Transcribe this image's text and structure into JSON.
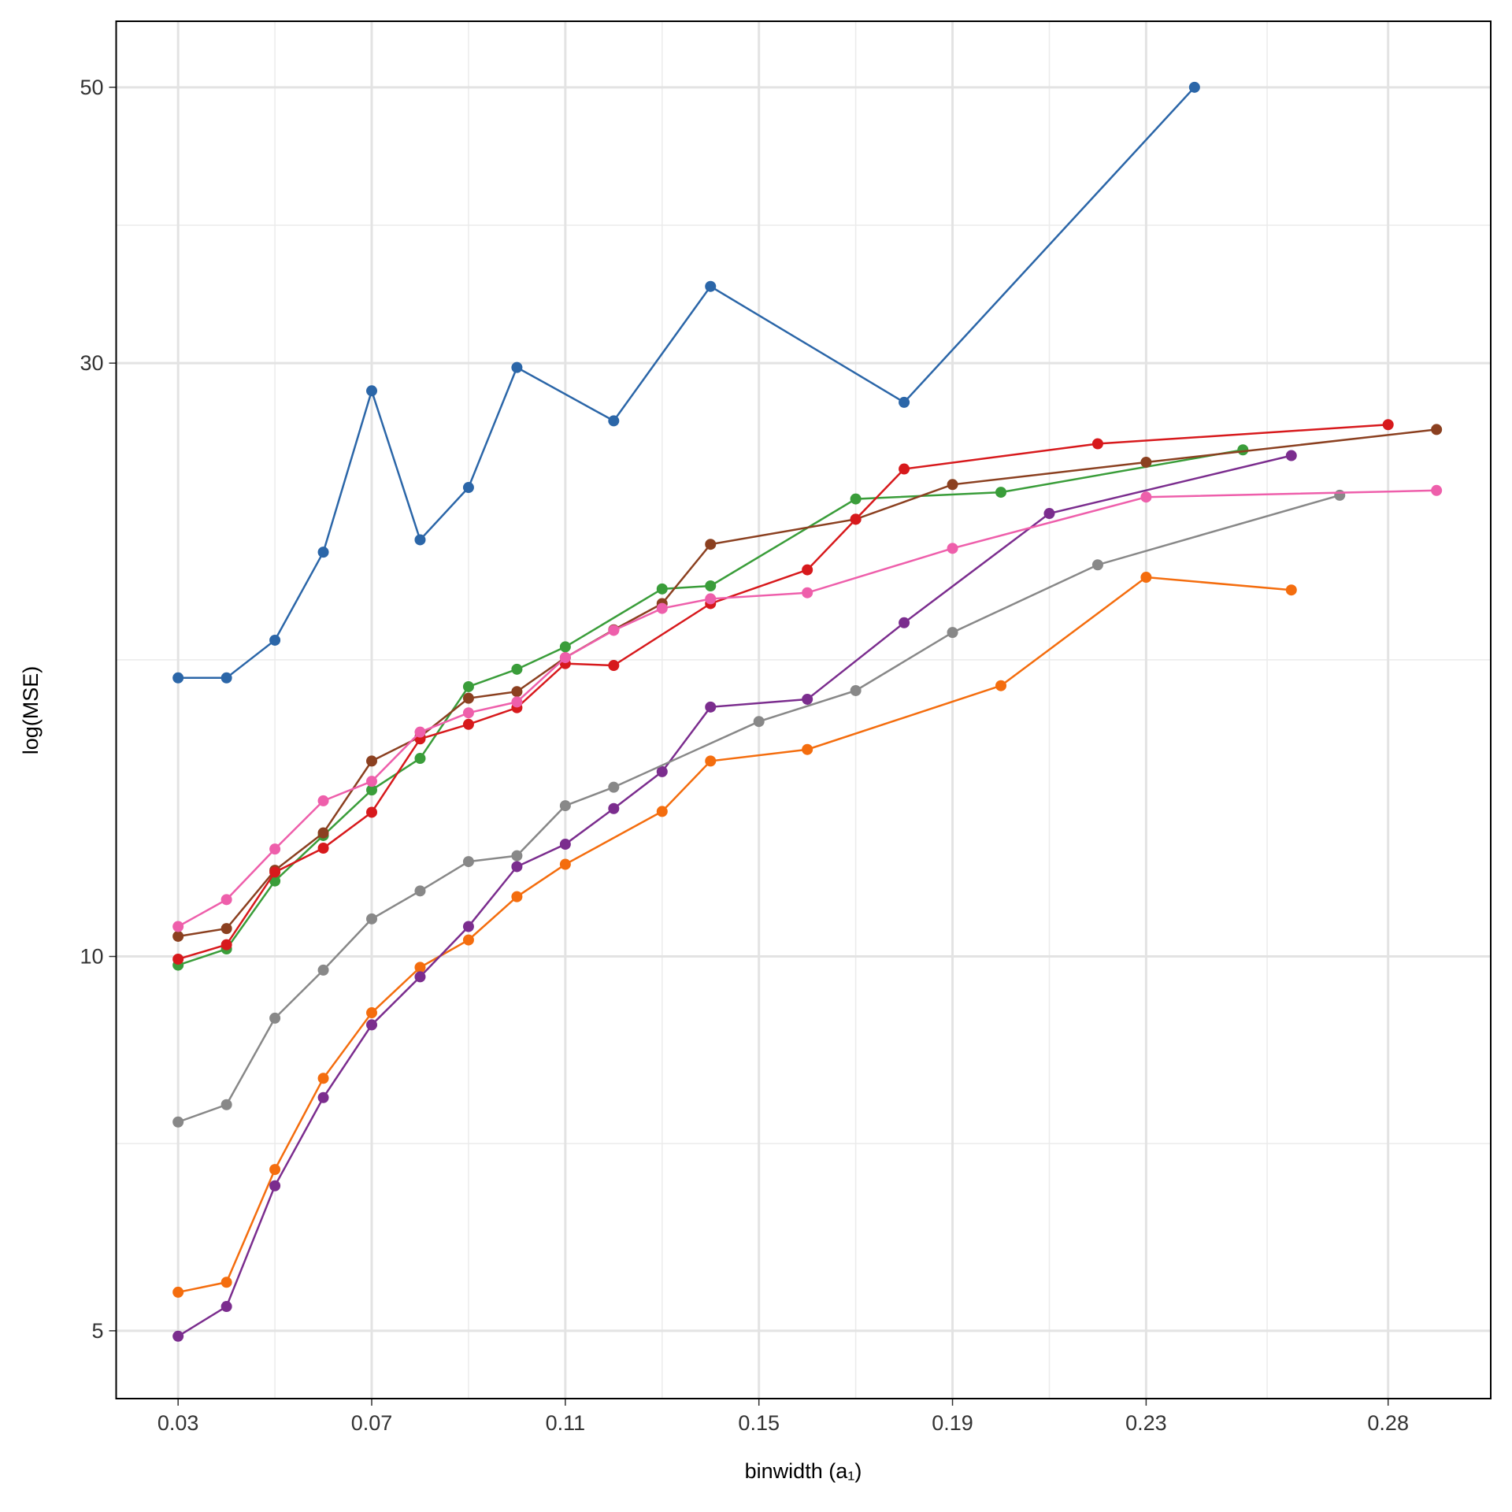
{
  "chart_data": {
    "type": "line",
    "xlabel": "binwidth (a₁)",
    "ylabel": "log(MSE)",
    "xlim": [
      0.0172,
      0.3012
    ],
    "xticks": [
      0.03,
      0.07,
      0.11,
      0.15,
      0.19,
      0.23,
      0.28
    ],
    "ylim": [
      4.41,
      56.5
    ],
    "yticks": [
      5,
      10,
      30,
      50
    ],
    "yscale": "log",
    "grid": true,
    "series": [
      {
        "color": "#2b66a8",
        "x": [
          0.03,
          0.04,
          0.05,
          0.06,
          0.07,
          0.08,
          0.09,
          0.1,
          0.12,
          0.14,
          0.18,
          0.24
        ],
        "values": [
          16.75,
          16.75,
          17.96,
          21.14,
          28.5,
          21.63,
          23.83,
          29.76,
          26.96,
          34.58,
          27.9,
          50
        ]
      },
      {
        "color": "#f46d0e",
        "x": [
          0.03,
          0.04,
          0.05,
          0.06,
          0.07,
          0.08,
          0.09,
          0.1,
          0.11,
          0.13,
          0.14,
          0.16,
          0.2,
          0.23,
          0.26
        ],
        "values": [
          5.37,
          5.47,
          6.74,
          7.98,
          9.01,
          9.8,
          10.31,
          11.17,
          11.86,
          13.08,
          14.36,
          14.67,
          16.51,
          20.18,
          19.71
        ]
      },
      {
        "color": "#7b2d8e",
        "x": [
          0.03,
          0.04,
          0.05,
          0.06,
          0.07,
          0.08,
          0.09,
          0.1,
          0.11,
          0.12,
          0.13,
          0.14,
          0.16,
          0.18,
          0.21,
          0.26
        ],
        "values": [
          4.95,
          5.23,
          6.54,
          7.7,
          8.81,
          9.63,
          10.57,
          11.81,
          12.31,
          13.15,
          14.08,
          15.87,
          16.1,
          18.55,
          22.71,
          25.28
        ]
      },
      {
        "color": "#888888",
        "x": [
          0.03,
          0.04,
          0.05,
          0.06,
          0.07,
          0.08,
          0.09,
          0.1,
          0.11,
          0.12,
          0.15,
          0.17,
          0.19,
          0.22,
          0.27
        ],
        "values": [
          7.36,
          7.6,
          8.92,
          9.75,
          10.72,
          11.29,
          11.92,
          12.05,
          13.22,
          13.68,
          15.45,
          16.36,
          18.22,
          20.65,
          23.49
        ]
      },
      {
        "color": "#3a9d3a",
        "x": [
          0.03,
          0.04,
          0.05,
          0.06,
          0.07,
          0.08,
          0.09,
          0.1,
          0.11,
          0.13,
          0.14,
          0.17,
          0.2,
          0.25
        ],
        "values": [
          9.84,
          10.14,
          11.5,
          12.51,
          13.61,
          14.43,
          16.48,
          17.02,
          17.74,
          19.75,
          19.86,
          23.33,
          23.62,
          25.55
        ]
      },
      {
        "color": "#8b4020",
        "x": [
          0.03,
          0.04,
          0.05,
          0.06,
          0.07,
          0.08,
          0.09,
          0.1,
          0.11,
          0.12,
          0.13,
          0.14,
          0.17,
          0.19,
          0.23,
          0.29
        ],
        "values": [
          10.38,
          10.53,
          11.73,
          12.57,
          14.36,
          15.02,
          16.13,
          16.33,
          17.39,
          18.31,
          19.22,
          21.45,
          22.47,
          23.96,
          24.97,
          26.53
        ]
      },
      {
        "color": "#d7191c",
        "x": [
          0.03,
          0.04,
          0.05,
          0.06,
          0.07,
          0.08,
          0.09,
          0.1,
          0.11,
          0.12,
          0.14,
          0.16,
          0.17,
          0.18,
          0.22,
          0.28
        ],
        "values": [
          9.95,
          10.22,
          11.69,
          12.22,
          13.06,
          14.96,
          15.37,
          15.85,
          17.2,
          17.14,
          19.22,
          20.46,
          22.47,
          24.66,
          25.84,
          26.77
        ]
      },
      {
        "color": "#ee5fab",
        "x": [
          0.03,
          0.04,
          0.05,
          0.06,
          0.07,
          0.08,
          0.09,
          0.1,
          0.11,
          0.12,
          0.13,
          0.14,
          0.16,
          0.19,
          0.23,
          0.29
        ],
        "values": [
          10.57,
          11.11,
          12.2,
          13.34,
          13.83,
          15.15,
          15.7,
          16.02,
          17.39,
          18.29,
          19.05,
          19.39,
          19.61,
          21.29,
          23.41,
          23.7
        ]
      }
    ]
  }
}
